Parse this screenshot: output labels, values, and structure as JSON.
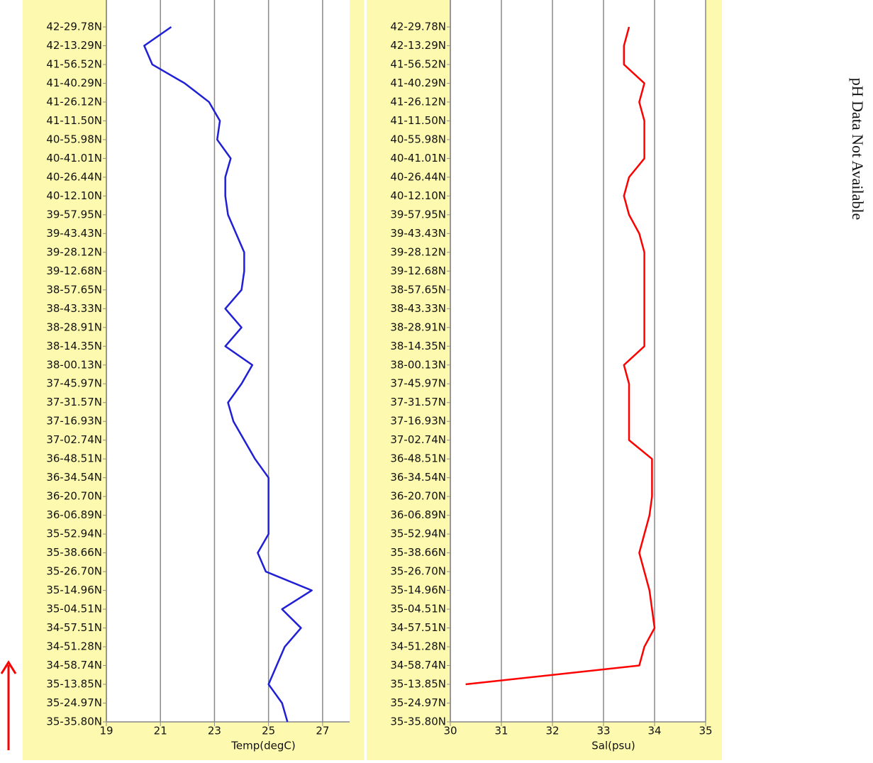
{
  "chart_data": [
    {
      "type": "line",
      "orientation": "horizontal",
      "x_label": "Temp(degC)",
      "categories": [
        "35-35.80N",
        "35-24.97N",
        "35-13.85N",
        "34-58.74N",
        "34-51.28N",
        "34-57.51N",
        "35-04.51N",
        "35-14.96N",
        "35-26.70N",
        "35-38.66N",
        "35-52.94N",
        "36-06.89N",
        "36-20.70N",
        "36-34.54N",
        "36-48.51N",
        "37-02.74N",
        "37-16.93N",
        "37-31.57N",
        "37-45.97N",
        "38-00.13N",
        "38-14.35N",
        "38-28.91N",
        "38-43.33N",
        "38-57.65N",
        "39-12.68N",
        "39-28.12N",
        "39-43.43N",
        "39-57.95N",
        "40-12.10N",
        "40-26.44N",
        "40-41.01N",
        "40-55.98N",
        "41-11.50N",
        "41-26.12N",
        "41-40.29N",
        "41-56.52N",
        "42-13.29N",
        "42-29.78N"
      ],
      "series": [
        {
          "color": "#1f1fd6",
          "values": [
            25.7,
            25.5,
            25.0,
            25.3,
            25.6,
            26.2,
            25.5,
            26.6,
            24.9,
            24.6,
            25.0,
            25.0,
            25.0,
            25.0,
            24.5,
            24.1,
            23.7,
            23.5,
            24.0,
            24.4,
            23.4,
            24.0,
            23.4,
            24.0,
            24.1,
            24.1,
            23.8,
            23.5,
            23.4,
            23.4,
            23.6,
            23.1,
            23.2,
            22.8,
            21.9,
            20.7,
            20.4,
            21.4
          ]
        }
      ],
      "xlim": [
        19,
        28
      ],
      "xticks": [
        19,
        21,
        23,
        25,
        27
      ],
      "grid": true
    },
    {
      "type": "line",
      "orientation": "horizontal",
      "x_label": "Sal(psu)",
      "categories": [
        "35-35.80N",
        "35-24.97N",
        "35-13.85N",
        "34-58.74N",
        "34-51.28N",
        "34-57.51N",
        "35-04.51N",
        "35-14.96N",
        "35-26.70N",
        "35-38.66N",
        "35-52.94N",
        "36-06.89N",
        "36-20.70N",
        "36-34.54N",
        "36-48.51N",
        "37-02.74N",
        "37-16.93N",
        "37-31.57N",
        "37-45.97N",
        "38-00.13N",
        "38-14.35N",
        "38-28.91N",
        "38-43.33N",
        "38-57.65N",
        "39-12.68N",
        "39-28.12N",
        "39-43.43N",
        "39-57.95N",
        "40-12.10N",
        "40-26.44N",
        "40-41.01N",
        "40-55.98N",
        "41-11.50N",
        "41-26.12N",
        "41-40.29N",
        "41-56.52N",
        "42-13.29N",
        "42-29.78N"
      ],
      "series": [
        {
          "color": "#ff0000",
          "values": [
            null,
            null,
            30.3,
            33.7,
            33.8,
            34.0,
            33.95,
            33.9,
            33.8,
            33.7,
            33.8,
            33.9,
            33.95,
            33.95,
            33.95,
            33.5,
            33.5,
            33.5,
            33.5,
            33.4,
            33.8,
            33.8,
            33.8,
            33.8,
            33.8,
            33.8,
            33.7,
            33.5,
            33.4,
            33.5,
            33.8,
            33.8,
            33.8,
            33.7,
            33.8,
            33.4,
            33.4,
            33.5
          ]
        }
      ],
      "xlim": [
        30,
        35
      ],
      "xticks": [
        30,
        31,
        32,
        33,
        34,
        35
      ],
      "grid": true
    }
  ],
  "note": "pH Data Not Available"
}
